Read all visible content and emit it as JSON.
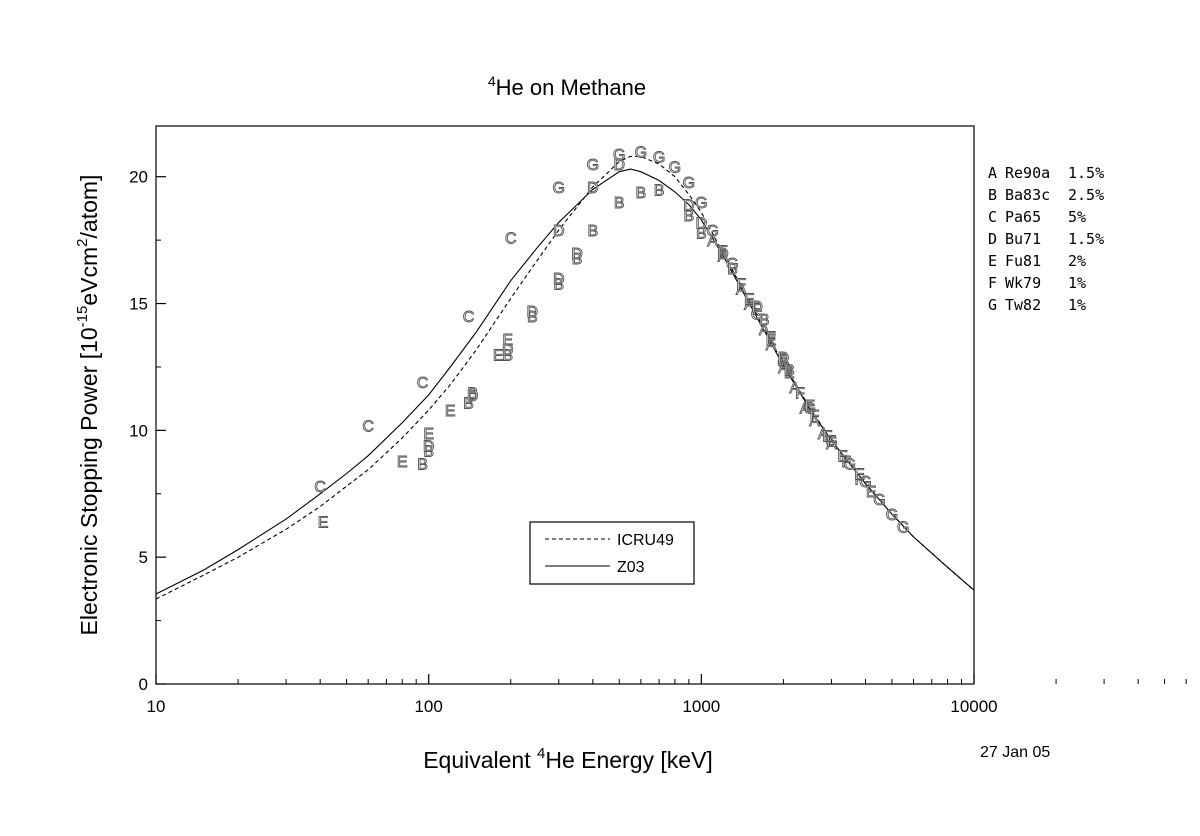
{
  "chart_data": {
    "type": "line",
    "title_sup": "4",
    "title_rest": "He on Methane",
    "xlabel_pre": "Equivalent ",
    "xlabel_sup": "4",
    "xlabel_post": "He Energy [keV]",
    "ylabel_pre": "Electronic Stopping Power [10",
    "ylabel_sup1": "-15",
    "ylabel_mid": "eVcm",
    "ylabel_sup2": "2",
    "ylabel_post": "/atom]",
    "x_scale": "log",
    "xlim": [
      10,
      10000
    ],
    "ylim": [
      0,
      22
    ],
    "x_ticks": [
      10,
      100,
      1000,
      10000
    ],
    "x_tick_labels": [
      "10",
      "100",
      "1000",
      "10000"
    ],
    "y_ticks": [
      0,
      5,
      10,
      15,
      20
    ],
    "y_tick_labels": [
      "0",
      "5",
      "10",
      "15",
      "20"
    ],
    "date": "27 Jan 05",
    "series": [
      {
        "name": "ICRU49",
        "style": "dashed",
        "x": [
          10,
          15,
          20,
          30,
          40,
          50,
          60,
          80,
          100,
          120,
          150,
          200,
          250,
          300,
          400,
          500,
          550,
          600,
          700,
          800,
          900,
          1000,
          1200,
          1500,
          2000,
          2500,
          3000,
          4000,
          5000,
          6000,
          8000,
          10000
        ],
        "y": [
          3.35,
          4.3,
          5.0,
          6.1,
          7.0,
          7.8,
          8.45,
          9.7,
          10.8,
          11.8,
          13.2,
          15.2,
          16.7,
          17.9,
          19.6,
          20.6,
          20.8,
          20.8,
          20.5,
          20.0,
          19.3,
          18.6,
          17.0,
          15.1,
          12.6,
          10.9,
          9.6,
          7.9,
          6.7,
          5.8,
          4.6,
          3.7
        ]
      },
      {
        "name": "Z03",
        "style": "solid",
        "x": [
          10,
          15,
          20,
          30,
          40,
          50,
          60,
          80,
          100,
          120,
          150,
          200,
          250,
          300,
          400,
          500,
          550,
          600,
          700,
          800,
          900,
          1000,
          1200,
          1500,
          2000,
          2500,
          3000,
          4000,
          5000,
          6000,
          8000,
          10000
        ],
        "y": [
          3.55,
          4.5,
          5.3,
          6.5,
          7.5,
          8.3,
          9.0,
          10.3,
          11.4,
          12.5,
          13.9,
          15.9,
          17.2,
          18.2,
          19.5,
          20.2,
          20.3,
          20.2,
          19.85,
          19.4,
          18.9,
          18.3,
          16.9,
          15.0,
          12.55,
          10.85,
          9.6,
          7.9,
          6.7,
          5.8,
          4.6,
          3.7
        ]
      }
    ],
    "points": [
      {
        "l": "C",
        "x": 40,
        "y": 7.8
      },
      {
        "l": "C",
        "x": 60,
        "y": 10.2
      },
      {
        "l": "C",
        "x": 95,
        "y": 11.9
      },
      {
        "l": "C",
        "x": 140,
        "y": 14.5
      },
      {
        "l": "C",
        "x": 200,
        "y": 17.6
      },
      {
        "l": "E",
        "x": 41,
        "y": 6.4
      },
      {
        "l": "E",
        "x": 80,
        "y": 8.8
      },
      {
        "l": "E",
        "x": 100,
        "y": 9.9
      },
      {
        "l": "E",
        "x": 120,
        "y": 10.8
      },
      {
        "l": "E",
        "x": 180,
        "y": 13.0
      },
      {
        "l": "E",
        "x": 195,
        "y": 13.6
      },
      {
        "l": "B",
        "x": 95,
        "y": 8.7
      },
      {
        "l": "B",
        "x": 100,
        "y": 9.2
      },
      {
        "l": "B",
        "x": 140,
        "y": 11.1
      },
      {
        "l": "B",
        "x": 145,
        "y": 11.5
      },
      {
        "l": "B",
        "x": 195,
        "y": 13.0
      },
      {
        "l": "B",
        "x": 240,
        "y": 14.5
      },
      {
        "l": "B",
        "x": 300,
        "y": 15.8
      },
      {
        "l": "B",
        "x": 350,
        "y": 16.8
      },
      {
        "l": "B",
        "x": 400,
        "y": 17.9
      },
      {
        "l": "B",
        "x": 500,
        "y": 19.0
      },
      {
        "l": "B",
        "x": 600,
        "y": 19.4
      },
      {
        "l": "B",
        "x": 700,
        "y": 19.5
      },
      {
        "l": "B",
        "x": 900,
        "y": 18.5
      },
      {
        "l": "B",
        "x": 1000,
        "y": 17.8
      },
      {
        "l": "D",
        "x": 100,
        "y": 9.4
      },
      {
        "l": "D",
        "x": 145,
        "y": 11.4
      },
      {
        "l": "D",
        "x": 195,
        "y": 13.2
      },
      {
        "l": "D",
        "x": 240,
        "y": 14.7
      },
      {
        "l": "D",
        "x": 300,
        "y": 16.0
      },
      {
        "l": "D",
        "x": 350,
        "y": 17.0
      },
      {
        "l": "D",
        "x": 300,
        "y": 17.9
      },
      {
        "l": "D",
        "x": 400,
        "y": 19.6
      },
      {
        "l": "D",
        "x": 500,
        "y": 20.5
      },
      {
        "l": "D",
        "x": 900,
        "y": 18.9
      },
      {
        "l": "D",
        "x": 1000,
        "y": 18.2
      },
      {
        "l": "G",
        "x": 300,
        "y": 19.6
      },
      {
        "l": "G",
        "x": 400,
        "y": 20.5
      },
      {
        "l": "G",
        "x": 500,
        "y": 20.9
      },
      {
        "l": "G",
        "x": 600,
        "y": 21.0
      },
      {
        "l": "G",
        "x": 700,
        "y": 20.8
      },
      {
        "l": "G",
        "x": 800,
        "y": 20.4
      },
      {
        "l": "G",
        "x": 900,
        "y": 19.8
      },
      {
        "l": "G",
        "x": 1000,
        "y": 19.0
      },
      {
        "l": "G",
        "x": 1100,
        "y": 17.9
      },
      {
        "l": "G",
        "x": 1300,
        "y": 16.6
      },
      {
        "l": "G",
        "x": 1600,
        "y": 14.6
      },
      {
        "l": "G",
        "x": 2000,
        "y": 12.7
      },
      {
        "l": "G",
        "x": 2500,
        "y": 10.9
      },
      {
        "l": "G",
        "x": 3000,
        "y": 9.6
      },
      {
        "l": "G",
        "x": 3500,
        "y": 8.7
      },
      {
        "l": "G",
        "x": 4000,
        "y": 8.0
      },
      {
        "l": "G",
        "x": 4500,
        "y": 7.3
      },
      {
        "l": "G",
        "x": 5000,
        "y": 6.7
      },
      {
        "l": "G",
        "x": 5500,
        "y": 6.2
      },
      {
        "l": "A",
        "x": 1100,
        "y": 17.5
      },
      {
        "l": "A",
        "x": 1200,
        "y": 16.9
      },
      {
        "l": "A",
        "x": 1400,
        "y": 15.6
      },
      {
        "l": "A",
        "x": 1500,
        "y": 15.0
      },
      {
        "l": "A",
        "x": 1700,
        "y": 14.0
      },
      {
        "l": "A",
        "x": 1800,
        "y": 13.4
      },
      {
        "l": "A",
        "x": 2000,
        "y": 12.5
      },
      {
        "l": "A",
        "x": 2200,
        "y": 11.7
      },
      {
        "l": "A",
        "x": 2400,
        "y": 10.9
      },
      {
        "l": "A",
        "x": 2600,
        "y": 10.4
      },
      {
        "l": "A",
        "x": 2800,
        "y": 9.9
      },
      {
        "l": "A",
        "x": 3000,
        "y": 9.5
      },
      {
        "l": "F",
        "x": 1200,
        "y": 17.1
      },
      {
        "l": "F",
        "x": 1400,
        "y": 15.8
      },
      {
        "l": "F",
        "x": 1600,
        "y": 14.8
      },
      {
        "l": "F",
        "x": 1800,
        "y": 13.7
      },
      {
        "l": "F",
        "x": 2000,
        "y": 12.8
      },
      {
        "l": "F",
        "x": 2300,
        "y": 11.5
      },
      {
        "l": "F",
        "x": 2600,
        "y": 10.6
      },
      {
        "l": "F",
        "x": 3000,
        "y": 9.6
      },
      {
        "l": "F",
        "x": 3400,
        "y": 8.8
      },
      {
        "l": "F",
        "x": 3800,
        "y": 8.1
      },
      {
        "l": "E",
        "x": 1500,
        "y": 15.2
      },
      {
        "l": "E",
        "x": 1800,
        "y": 13.6
      },
      {
        "l": "E",
        "x": 2100,
        "y": 12.3
      },
      {
        "l": "E",
        "x": 2500,
        "y": 11.0
      },
      {
        "l": "E",
        "x": 2900,
        "y": 9.8
      },
      {
        "l": "E",
        "x": 3300,
        "y": 9.0
      },
      {
        "l": "E",
        "x": 3800,
        "y": 8.3
      },
      {
        "l": "E",
        "x": 4200,
        "y": 7.6
      },
      {
        "l": "D",
        "x": 1200,
        "y": 17.0
      },
      {
        "l": "D",
        "x": 1600,
        "y": 14.9
      },
      {
        "l": "D",
        "x": 2000,
        "y": 12.9
      },
      {
        "l": "B",
        "x": 1300,
        "y": 16.4
      },
      {
        "l": "B",
        "x": 1700,
        "y": 14.4
      },
      {
        "l": "B",
        "x": 2100,
        "y": 12.4
      }
    ]
  },
  "legend": {
    "items": [
      {
        "label": "ICRU49",
        "style": "dashed"
      },
      {
        "label": "Z03",
        "style": "solid"
      }
    ]
  },
  "references": [
    {
      "letter": "A",
      "code": "Re90a",
      "pct": "1.5%"
    },
    {
      "letter": "B",
      "code": "Ba83c",
      "pct": "2.5%"
    },
    {
      "letter": "C",
      "code": "Pa65",
      "pct": "5%"
    },
    {
      "letter": "D",
      "code": "Bu71",
      "pct": "1.5%"
    },
    {
      "letter": "E",
      "code": "Fu81",
      "pct": "2%"
    },
    {
      "letter": "F",
      "code": "Wk79",
      "pct": "1%"
    },
    {
      "letter": "G",
      "code": "Tw82",
      "pct": "1%"
    }
  ]
}
